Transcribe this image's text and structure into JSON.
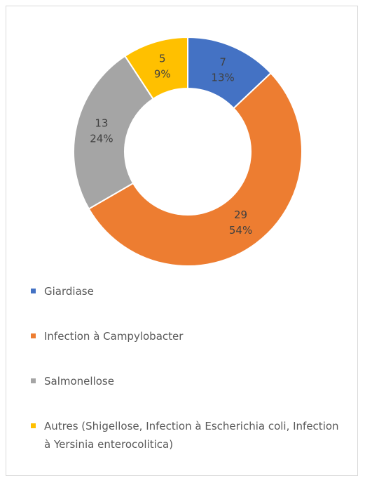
{
  "chart_data": {
    "type": "donut",
    "categories": [
      "Giardiase",
      "Infection à Campylobacter",
      "Salmonellose",
      "Autres (Shigellose, Infection à Escherichia coli, Infection à Yersinia enterocolitica)"
    ],
    "values": [
      7,
      29,
      13,
      5
    ],
    "percent_labels": [
      "13%",
      "54%",
      "24%",
      "9%"
    ],
    "colors": [
      "#4472c4",
      "#ed7d31",
      "#a5a5a5",
      "#ffc000"
    ],
    "legend": "bottom"
  }
}
